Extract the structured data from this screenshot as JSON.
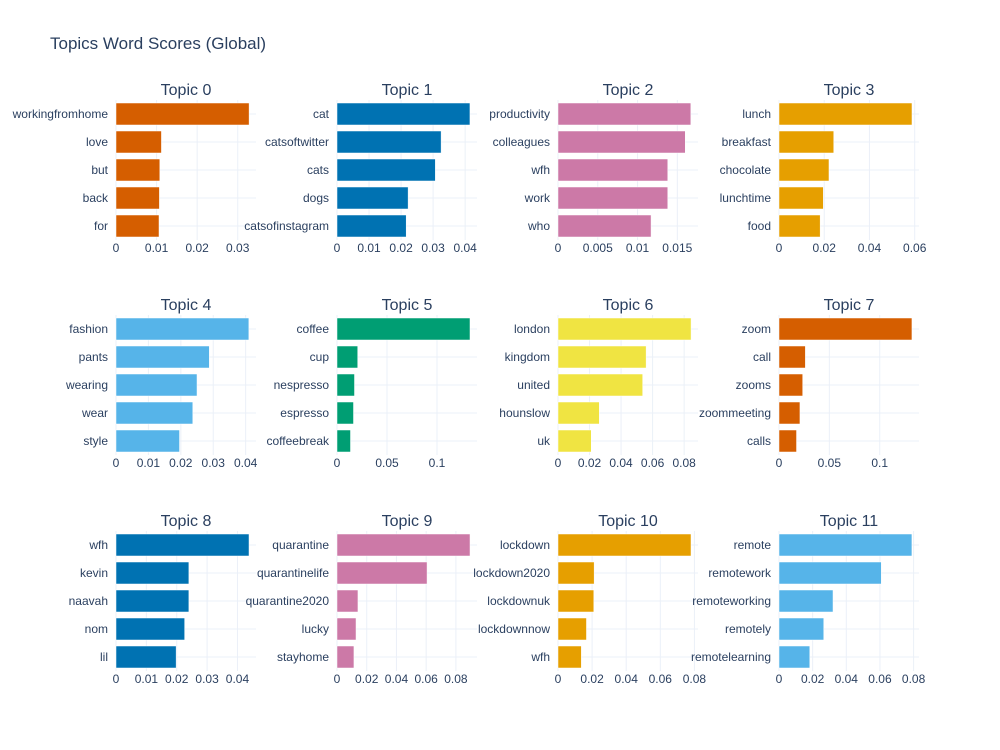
{
  "title": "Topics Word Scores (Global)",
  "chart_data": [
    {
      "type": "bar",
      "orientation": "horizontal",
      "title": "Topic 0",
      "color": "#D55E00",
      "categories": [
        "workingfromhome",
        "love",
        "but",
        "back",
        "for"
      ],
      "values": [
        0.0328,
        0.0112,
        0.0108,
        0.0107,
        0.0106
      ],
      "xlim": [
        0,
        0.0345
      ],
      "xticks": [
        0,
        0.01,
        0.02,
        0.03
      ],
      "xticklabels": [
        "0",
        "0.01",
        "0.02",
        "0.03"
      ]
    },
    {
      "type": "bar",
      "orientation": "horizontal",
      "title": "Topic 1",
      "color": "#0072B2",
      "categories": [
        "cat",
        "catsoftwitter",
        "cats",
        "dogs",
        "catsofinstagram"
      ],
      "values": [
        0.0415,
        0.0325,
        0.0307,
        0.0222,
        0.0216
      ],
      "xlim": [
        0,
        0.0437
      ],
      "xticks": [
        0,
        0.01,
        0.02,
        0.03,
        0.04
      ],
      "xticklabels": [
        "0",
        "0.01",
        "0.02",
        "0.03",
        "0.04"
      ]
    },
    {
      "type": "bar",
      "orientation": "horizontal",
      "title": "Topic 2",
      "color": "#CC79A7",
      "categories": [
        "productivity",
        "colleagues",
        "wfh",
        "work",
        "who"
      ],
      "values": [
        0.0167,
        0.016,
        0.0138,
        0.0138,
        0.0117
      ],
      "xlim": [
        0,
        0.0176
      ],
      "xticks": [
        0,
        0.005,
        0.01,
        0.015
      ],
      "xticklabels": [
        "0",
        "0.005",
        "0.01",
        "0.015"
      ]
    },
    {
      "type": "bar",
      "orientation": "horizontal",
      "title": "Topic 3",
      "color": "#E69F00",
      "categories": [
        "lunch",
        "breakfast",
        "chocolate",
        "lunchtime",
        "food"
      ],
      "values": [
        0.0588,
        0.0242,
        0.0221,
        0.0196,
        0.0182
      ],
      "xlim": [
        0,
        0.0619
      ],
      "xticks": [
        0,
        0.02,
        0.04,
        0.06
      ],
      "xticklabels": [
        "0",
        "0.02",
        "0.04",
        "0.06"
      ]
    },
    {
      "type": "bar",
      "orientation": "horizontal",
      "title": "Topic 4",
      "color": "#56B4E9",
      "categories": [
        "fashion",
        "pants",
        "wearing",
        "wear",
        "style"
      ],
      "values": [
        0.041,
        0.0288,
        0.025,
        0.0237,
        0.0196
      ],
      "xlim": [
        0,
        0.0432
      ],
      "xticks": [
        0,
        0.01,
        0.02,
        0.03,
        0.04
      ],
      "xticklabels": [
        "0",
        "0.01",
        "0.02",
        "0.03",
        "0.04"
      ]
    },
    {
      "type": "bar",
      "orientation": "horizontal",
      "title": "Topic 5",
      "color": "#009E73",
      "categories": [
        "coffee",
        "cup",
        "nespresso",
        "espresso",
        "coffeebreak"
      ],
      "values": [
        0.133,
        0.0207,
        0.0175,
        0.0165,
        0.0135
      ],
      "xlim": [
        0,
        0.14
      ],
      "xticks": [
        0,
        0.05,
        0.1
      ],
      "xticklabels": [
        "0",
        "0.05",
        "0.1"
      ]
    },
    {
      "type": "bar",
      "orientation": "horizontal",
      "title": "Topic 6",
      "color": "#F0E442",
      "categories": [
        "london",
        "kingdom",
        "united",
        "hounslow",
        "uk"
      ],
      "values": [
        0.0844,
        0.0559,
        0.0537,
        0.0262,
        0.0211
      ],
      "xlim": [
        0,
        0.0888
      ],
      "xticks": [
        0,
        0.02,
        0.04,
        0.06,
        0.08
      ],
      "xticklabels": [
        "0",
        "0.02",
        "0.04",
        "0.06",
        "0.08"
      ]
    },
    {
      "type": "bar",
      "orientation": "horizontal",
      "title": "Topic 7",
      "color": "#D55E00",
      "categories": [
        "zoom",
        "call",
        "zooms",
        "zoommeeting",
        "calls"
      ],
      "values": [
        0.132,
        0.0262,
        0.0235,
        0.0208,
        0.0174
      ],
      "xlim": [
        0,
        0.139
      ],
      "xticks": [
        0,
        0.05,
        0.1
      ],
      "xticklabels": [
        "0",
        "0.05",
        "0.1"
      ]
    },
    {
      "type": "bar",
      "orientation": "horizontal",
      "title": "Topic 8",
      "color": "#0072B2",
      "categories": [
        "wfh",
        "kevin",
        "naavah",
        "nom",
        "lil"
      ],
      "values": [
        0.0438,
        0.024,
        0.024,
        0.0226,
        0.0198
      ],
      "xlim": [
        0,
        0.0461
      ],
      "xticks": [
        0,
        0.01,
        0.02,
        0.03,
        0.04
      ],
      "xticklabels": [
        "0",
        "0.01",
        "0.02",
        "0.03",
        "0.04"
      ]
    },
    {
      "type": "bar",
      "orientation": "horizontal",
      "title": "Topic 9",
      "color": "#CC79A7",
      "categories": [
        "quarantine",
        "quarantinelife",
        "quarantine2020",
        "lucky",
        "stayhome"
      ],
      "values": [
        0.0895,
        0.0606,
        0.0141,
        0.0128,
        0.0114
      ],
      "xlim": [
        0,
        0.0942
      ],
      "xticks": [
        0,
        0.02,
        0.04,
        0.06,
        0.08
      ],
      "xticklabels": [
        "0",
        "0.02",
        "0.04",
        "0.06",
        "0.08"
      ]
    },
    {
      "type": "bar",
      "orientation": "horizontal",
      "title": "Topic 10",
      "color": "#E69F00",
      "categories": [
        "lockdown",
        "lockdown2020",
        "lockdownuk",
        "lockdownnow",
        "wfh"
      ],
      "values": [
        0.078,
        0.0212,
        0.021,
        0.0167,
        0.0137
      ],
      "xlim": [
        0,
        0.0821
      ],
      "xticks": [
        0,
        0.02,
        0.04,
        0.06,
        0.08
      ],
      "xticklabels": [
        "0",
        "0.02",
        "0.04",
        "0.06",
        "0.08"
      ]
    },
    {
      "type": "bar",
      "orientation": "horizontal",
      "title": "Topic 11",
      "color": "#56B4E9",
      "categories": [
        "remote",
        "remotework",
        "remoteworking",
        "remotely",
        "remotelearning"
      ],
      "values": [
        0.079,
        0.0608,
        0.0321,
        0.0266,
        0.0183
      ],
      "xlim": [
        0,
        0.0832
      ],
      "xticks": [
        0,
        0.02,
        0.04,
        0.06,
        0.08
      ],
      "xticklabels": [
        "0",
        "0.02",
        "0.04",
        "0.06",
        "0.08"
      ]
    }
  ]
}
